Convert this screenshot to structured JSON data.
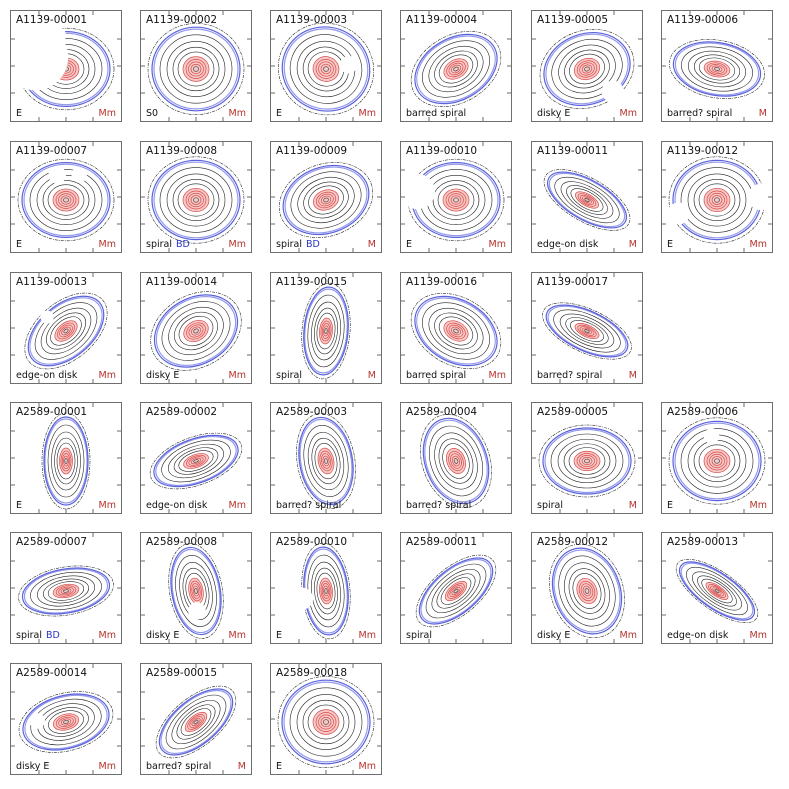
{
  "colors": {
    "contour_outer": "#3d46d6",
    "contour_inner": "#d94a4a",
    "contour_mid": "#222222",
    "flag": "#b5322b",
    "bd": "#2a33c8"
  },
  "panels": [
    {
      "id": "A1139-00001",
      "morph": "E",
      "bd": "",
      "flag": "Mm",
      "pa": 0,
      "axis": 0.85,
      "mask": [
        [
          0.22,
          0.42,
          0.3
        ],
        [
          0.42,
          0.22,
          0.08
        ]
      ]
    },
    {
      "id": "A1139-00002",
      "morph": "S0",
      "bd": "",
      "flag": "Mm",
      "pa": 0,
      "axis": 0.95,
      "mask": []
    },
    {
      "id": "A1139-00003",
      "morph": "E",
      "bd": "",
      "flag": "Mm",
      "pa": 20,
      "axis": 0.95,
      "mask": [
        [
          0.68,
          0.42,
          0.08
        ]
      ]
    },
    {
      "id": "A1139-00004",
      "morph": "barred spiral",
      "bd": "",
      "flag": "",
      "pa": -30,
      "axis": 0.7,
      "mask": []
    },
    {
      "id": "A1139-00005",
      "morph": "disky E",
      "bd": "",
      "flag": "Mm",
      "pa": -20,
      "axis": 0.8,
      "mask": [
        [
          0.65,
          0.8,
          0.1
        ]
      ]
    },
    {
      "id": "A1139-00006",
      "morph": "barred? spiral",
      "bd": "",
      "flag": "M",
      "pa": 10,
      "axis": 0.6,
      "mask": []
    },
    {
      "id": "A1139-00007",
      "morph": "E",
      "bd": "",
      "flag": "Mm",
      "pa": 0,
      "axis": 0.85,
      "mask": [
        [
          0.42,
          0.3,
          0.08
        ],
        [
          0.62,
          0.3,
          0.07
        ]
      ]
    },
    {
      "id": "A1139-00008",
      "morph": "spiral",
      "bd": "BD",
      "flag": "Mm",
      "pa": 0,
      "axis": 0.9,
      "mask": []
    },
    {
      "id": "A1139-00009",
      "morph": "spiral",
      "bd": "BD",
      "flag": "M",
      "pa": -20,
      "axis": 0.75,
      "mask": []
    },
    {
      "id": "A1139-00010",
      "morph": "E",
      "bd": "",
      "flag": "Mm",
      "pa": 0,
      "axis": 0.85,
      "mask": [
        [
          0.15,
          0.45,
          0.16
        ]
      ]
    },
    {
      "id": "A1139-00011",
      "morph": "edge-on disk",
      "bd": "",
      "flag": "M",
      "pa": 30,
      "axis": 0.45,
      "mask": []
    },
    {
      "id": "A1139-00012",
      "morph": "E",
      "bd": "",
      "flag": "Mm",
      "pa": 0,
      "axis": 0.9,
      "mask": [
        [
          0.15,
          0.65,
          0.1
        ],
        [
          0.9,
          0.5,
          0.12
        ]
      ]
    },
    {
      "id": "A1139-00013",
      "morph": "edge-on disk",
      "bd": "",
      "flag": "Mm",
      "pa": -40,
      "axis": 0.6,
      "mask": [
        [
          0.45,
          0.32,
          0.06
        ]
      ]
    },
    {
      "id": "A1139-00014",
      "morph": "disky E",
      "bd": "",
      "flag": "Mm",
      "pa": -30,
      "axis": 0.75,
      "mask": []
    },
    {
      "id": "A1139-00015",
      "morph": "spiral",
      "bd": "",
      "flag": "M",
      "pa": -85,
      "axis": 0.5,
      "mask": []
    },
    {
      "id": "A1139-00016",
      "morph": "barred spiral",
      "bd": "",
      "flag": "Mm",
      "pa": 30,
      "axis": 0.7,
      "mask": []
    },
    {
      "id": "A1139-00017",
      "morph": "barred? spiral",
      "bd": "",
      "flag": "M",
      "pa": 25,
      "axis": 0.45,
      "mask": []
    },
    {
      "id": "A2589-00001",
      "morph": "E",
      "bd": "",
      "flag": "Mm",
      "pa": 90,
      "axis": 0.5,
      "mask": []
    },
    {
      "id": "A2589-00002",
      "morph": "edge-on disk",
      "bd": "",
      "flag": "Mm",
      "pa": -20,
      "axis": 0.5,
      "mask": []
    },
    {
      "id": "A2589-00003",
      "morph": "barred? spiral",
      "bd": "",
      "flag": "",
      "pa": 80,
      "axis": 0.6,
      "mask": []
    },
    {
      "id": "A2589-00004",
      "morph": "barred? spiral",
      "bd": "",
      "flag": "",
      "pa": 70,
      "axis": 0.7,
      "mask": []
    },
    {
      "id": "A2589-00005",
      "morph": "spiral",
      "bd": "",
      "flag": "M",
      "pa": 0,
      "axis": 0.75,
      "mask": []
    },
    {
      "id": "A2589-00006",
      "morph": "E",
      "bd": "",
      "flag": "Mm",
      "pa": 0,
      "axis": 0.9,
      "mask": [
        [
          0.45,
          0.3,
          0.07
        ]
      ]
    },
    {
      "id": "A2589-00007",
      "morph": "spiral",
      "bd": "BD",
      "flag": "Mm",
      "pa": -10,
      "axis": 0.5,
      "mask": []
    },
    {
      "id": "A2589-00008",
      "morph": "disky E",
      "bd": "",
      "flag": "Mm",
      "pa": 80,
      "axis": 0.55,
      "mask": [
        [
          0.68,
          0.55,
          0.08
        ]
      ]
    },
    {
      "id": "A2589-00010",
      "morph": "E",
      "bd": "",
      "flag": "Mm",
      "pa": 85,
      "axis": 0.5,
      "mask": [
        [
          0.55,
          0.75,
          0.1
        ]
      ]
    },
    {
      "id": "A2589-00011",
      "morph": "spiral",
      "bd": "",
      "flag": "",
      "pa": -40,
      "axis": 0.5,
      "mask": []
    },
    {
      "id": "A2589-00012",
      "morph": "disky E",
      "bd": "",
      "flag": "Mm",
      "pa": 70,
      "axis": 0.75,
      "mask": []
    },
    {
      "id": "A2589-00013",
      "morph": "edge-on disk",
      "bd": "",
      "flag": "Mm",
      "pa": 35,
      "axis": 0.4,
      "mask": []
    },
    {
      "id": "A2589-00014",
      "morph": "disky E",
      "bd": "",
      "flag": "Mm",
      "pa": -15,
      "axis": 0.6,
      "mask": [
        [
          0.25,
          0.45,
          0.07
        ]
      ]
    },
    {
      "id": "A2589-00015",
      "morph": "barred? spiral",
      "bd": "",
      "flag": "M",
      "pa": -40,
      "axis": 0.5,
      "mask": []
    },
    {
      "id": "A2589-00018",
      "morph": "E",
      "bd": "",
      "flag": "Mm",
      "pa": 0,
      "axis": 0.95,
      "mask": []
    }
  ]
}
